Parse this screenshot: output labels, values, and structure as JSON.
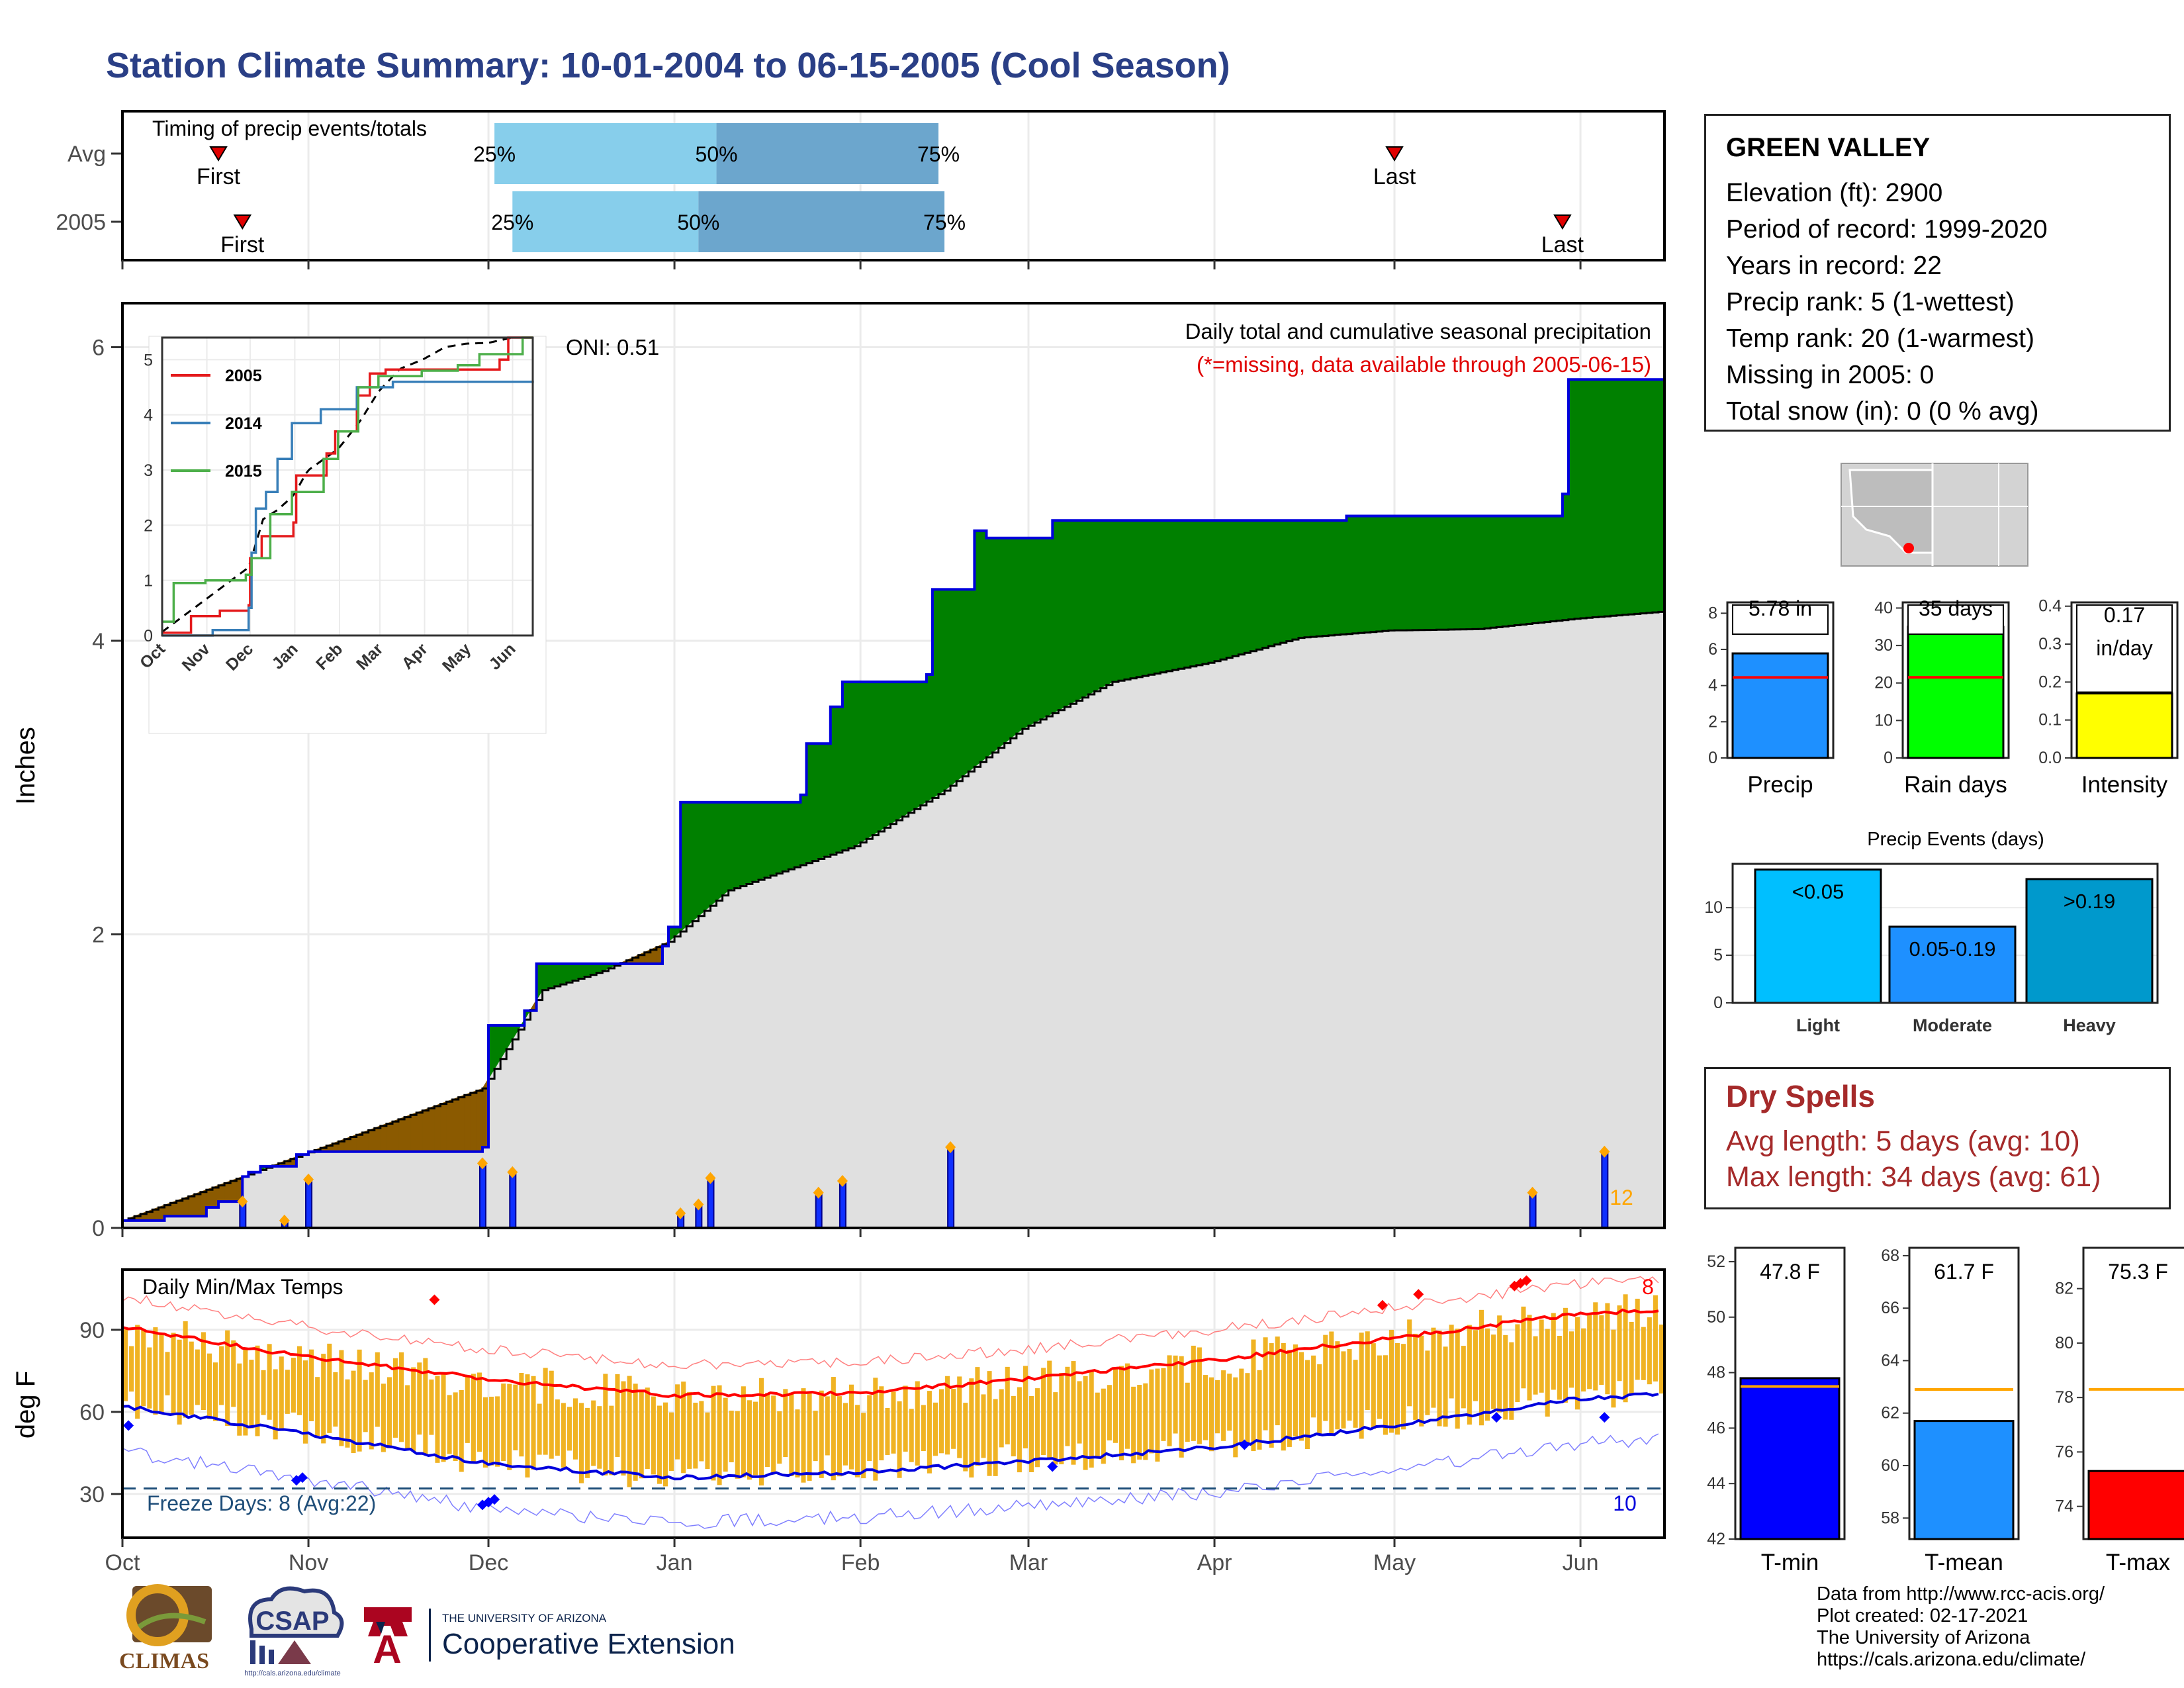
{
  "title": "Station Climate Summary: 10-01-2004 to 06-15-2005 (Cool Season)",
  "timing_panel": {
    "label": "Timing of precip events/totals",
    "rows": [
      {
        "name": "Avg",
        "first": "First",
        "last": "Last",
        "first_date": "2004-10-17",
        "last_date": "2005-05-01",
        "q25": "25%",
        "q50": "50%",
        "q75": "75%",
        "q25_date": "2004-12-02",
        "q50_date": "2005-01-08",
        "q75_date": "2005-02-14"
      },
      {
        "name": "2005",
        "first": "First",
        "last": "Last",
        "first_date": "2004-10-21",
        "last_date": "2005-05-29",
        "q25": "25%",
        "q50": "50%",
        "q75": "75%",
        "q25_date": "2004-12-05",
        "q50_date": "2005-01-05",
        "q75_date": "2005-02-15"
      }
    ]
  },
  "precip_panel": {
    "ylabel": "Inches",
    "ylim": [
      0,
      6.3
    ],
    "yticks": [
      "0",
      "2",
      "4",
      "6"
    ],
    "annotation": "Daily total and cumulative seasonal precipitation",
    "missing_note": "(*=missing, data available through 2005-06-15)",
    "oni": "ONI: 0.51",
    "count_label": "12"
  },
  "inset": {
    "ylim": [
      0,
      5.4
    ],
    "yticks": [
      "0",
      "1",
      "2",
      "3",
      "4",
      "5"
    ],
    "xticks": [
      "Oct",
      "Nov",
      "Dec",
      "Jan",
      "Feb",
      "Mar",
      "Apr",
      "May",
      "Jun"
    ],
    "legend": [
      {
        "name": "2005",
        "color": "#e41a1c"
      },
      {
        "name": "2014",
        "color": "#377eb8"
      },
      {
        "name": "2015",
        "color": "#4daf4a"
      }
    ]
  },
  "temp_panel": {
    "ylabel": "deg F",
    "title": "Daily Min/Max Temps",
    "yticks": [
      "30",
      "60",
      "90"
    ],
    "ylim": [
      14,
      112
    ],
    "freeze_label": "Freeze Days: 8 (Avg:22)",
    "freeze_line": 32,
    "high_count": "8",
    "low_count": "10"
  },
  "months": [
    "Oct",
    "Nov",
    "Dec",
    "Jan",
    "Feb",
    "Mar",
    "Apr",
    "May",
    "Jun"
  ],
  "station": {
    "name": "GREEN VALLEY",
    "lines": [
      "Elevation (ft): 2900",
      "Period of record: 1999-2020",
      "Years in record: 22",
      "Precip rank: 5 (1-wettest)",
      "Temp rank: 20 (1-warmest)",
      "Missing in 2005: 0",
      "Total snow (in): 0 (0 % avg)"
    ]
  },
  "summary_bars": [
    {
      "name": "Precip",
      "label": "5.78 in",
      "value": 5.78,
      "avg": 4.45,
      "ylim": [
        0,
        8.6
      ],
      "yticks": [
        "0",
        "2",
        "4",
        "6",
        "8"
      ],
      "color": "#1e90ff"
    },
    {
      "name": "Rain days",
      "label": "35 days",
      "value": 35,
      "avg": 21.5,
      "ylim": [
        0,
        41.5
      ],
      "yticks": [
        "0",
        "10",
        "20",
        "30",
        "40"
      ],
      "color": "#00ff00"
    },
    {
      "name": "Intensity",
      "label": "0.17 in/day",
      "label_lines": [
        "0.17",
        "in/day"
      ],
      "value": 0.17,
      "avg": 0.206,
      "ylim": [
        0,
        0.41
      ],
      "yticks": [
        "0.0",
        "0.1",
        "0.2",
        "0.3",
        "0.4"
      ],
      "color": "#ffff00"
    }
  ],
  "events_chart": {
    "title": "Precip Events (days)",
    "yticks": [
      "0",
      "5",
      "10"
    ],
    "ylim": [
      0,
      14.6
    ],
    "bars": [
      {
        "name": "Light",
        "label": "<0.05",
        "value": 14,
        "color": "#00bfff"
      },
      {
        "name": "Moderate",
        "label": "0.05-0.19",
        "value": 8,
        "color": "#1e90ff"
      },
      {
        "name": "Heavy",
        "label": ">0.19",
        "value": 13,
        "color": "#0099cc"
      }
    ]
  },
  "dry_spells": {
    "title": "Dry Spells",
    "avg_line": "Avg length: 5 days (avg: 10)",
    "max_line": "Max length: 34 days (avg: 61)"
  },
  "temp_bars": [
    {
      "name": "T-min",
      "label": "47.8 F",
      "value": 47.8,
      "avg": 47.5,
      "ylim": [
        42,
        52.5
      ],
      "yticks": [
        "42",
        "44",
        "46",
        "48",
        "50",
        "52"
      ],
      "color": "#0000ff"
    },
    {
      "name": "T-mean",
      "label": "61.7 F",
      "value": 61.7,
      "avg": 62.9,
      "ylim": [
        57.2,
        68.3
      ],
      "yticks": [
        "58",
        "60",
        "62",
        "64",
        "66",
        "68"
      ],
      "color": "#1e90ff"
    },
    {
      "name": "T-max",
      "label": "75.3 F",
      "value": 75.3,
      "avg": 78.3,
      "ylim": [
        72.8,
        83.5
      ],
      "yticks": [
        "74",
        "76",
        "78",
        "80",
        "82"
      ],
      "color": "#ff0000"
    }
  ],
  "credits": {
    "lines": [
      "Data from http://www.rcc-acis.org/",
      "Plot created: 02-17-2021",
      "The University of Arizona",
      "https://cals.arizona.edu/climate/"
    ]
  },
  "logos": {
    "climas": "CLIMAS",
    "csap": "CSAP",
    "csap_url": "http://cals.arizona.edu/climate",
    "ua_small": "THE UNIVERSITY OF ARIZONA",
    "ua_big": "Cooperative Extension"
  },
  "chart_data": [
    {
      "type": "area",
      "title": "Daily total and cumulative seasonal precipitation",
      "ylabel": "Inches",
      "ylim": [
        0,
        6.3
      ],
      "series": [
        {
          "name": "2005",
          "points": [
            [
              "2004-10-01",
              0.05
            ],
            [
              "2004-10-08",
              0.08
            ],
            [
              "2004-10-15",
              0.14
            ],
            [
              "2004-10-17",
              0.18
            ],
            [
              "2004-10-21",
              0.35
            ],
            [
              "2004-10-22",
              0.38
            ],
            [
              "2004-10-24",
              0.42
            ],
            [
              "2004-10-30",
              0.5
            ],
            [
              "2004-11-01",
              0.52
            ],
            [
              "2004-11-30",
              0.55
            ],
            [
              "2004-12-01",
              1.38
            ],
            [
              "2004-12-07",
              1.48
            ],
            [
              "2004-12-09",
              1.8
            ],
            [
              "2004-12-30",
              1.92
            ],
            [
              "2004-12-31",
              2.05
            ],
            [
              "2005-01-02",
              2.9
            ],
            [
              "2005-01-22",
              2.95
            ],
            [
              "2005-01-23",
              3.3
            ],
            [
              "2005-01-27",
              3.55
            ],
            [
              "2005-01-29",
              3.72
            ],
            [
              "2005-02-12",
              3.77
            ],
            [
              "2005-02-13",
              4.35
            ],
            [
              "2005-02-20",
              4.75
            ],
            [
              "2005-02-22",
              4.7
            ],
            [
              "2005-03-05",
              4.82
            ],
            [
              "2005-04-23",
              4.85
            ],
            [
              "2005-05-29",
              5.0
            ],
            [
              "2005-05-30",
              5.78
            ],
            [
              "2005-06-15",
              5.78
            ]
          ]
        },
        {
          "name": "Average",
          "points": [
            [
              "2004-10-01",
              0.05
            ],
            [
              "2004-10-31",
              0.5
            ],
            [
              "2004-11-30",
              0.95
            ],
            [
              "2004-12-10",
              1.62
            ],
            [
              "2004-12-20",
              1.75
            ],
            [
              "2004-12-31",
              1.95
            ],
            [
              "2005-01-10",
              2.3
            ],
            [
              "2005-01-31",
              2.6
            ],
            [
              "2005-02-15",
              2.98
            ],
            [
              "2005-02-28",
              3.4
            ],
            [
              "2005-03-15",
              3.72
            ],
            [
              "2005-03-31",
              3.85
            ],
            [
              "2005-04-15",
              4.02
            ],
            [
              "2005-04-30",
              4.07
            ],
            [
              "2005-05-15",
              4.08
            ],
            [
              "2005-05-31",
              4.15
            ],
            [
              "2005-06-15",
              4.2
            ]
          ]
        }
      ],
      "daily_bars": [
        [
          "2004-10-21",
          0.18
        ],
        [
          "2004-10-28",
          0.05
        ],
        [
          "2004-11-01",
          0.33
        ],
        [
          "2004-11-30",
          0.44
        ],
        [
          "2004-12-05",
          0.38
        ],
        [
          "2005-01-02",
          0.1
        ],
        [
          "2005-01-05",
          0.16
        ],
        [
          "2005-01-07",
          0.34
        ],
        [
          "2005-01-25",
          0.24
        ],
        [
          "2005-01-29",
          0.32
        ],
        [
          "2005-02-16",
          0.55
        ],
        [
          "2005-05-24",
          0.24
        ],
        [
          "2005-06-05",
          0.52
        ]
      ]
    },
    {
      "type": "line",
      "title": "Daily Min/Max Temps",
      "ylabel": "deg F",
      "series": [
        {
          "name": "Avg max",
          "x": [
            "Oct",
            "Nov",
            "Dec",
            "Jan",
            "Feb",
            "Mar",
            "Apr",
            "May",
            "Jun"
          ],
          "values": [
            91,
            80,
            72,
            66,
            67,
            72,
            79,
            87,
            96
          ]
        },
        {
          "name": "Avg min",
          "x": [
            "Oct",
            "Nov",
            "Dec",
            "Jan",
            "Feb",
            "Mar",
            "Apr",
            "May",
            "Jun"
          ],
          "values": [
            62,
            52,
            41,
            36,
            38,
            42,
            47,
            55,
            65
          ]
        }
      ],
      "freeze_line": 32
    }
  ]
}
